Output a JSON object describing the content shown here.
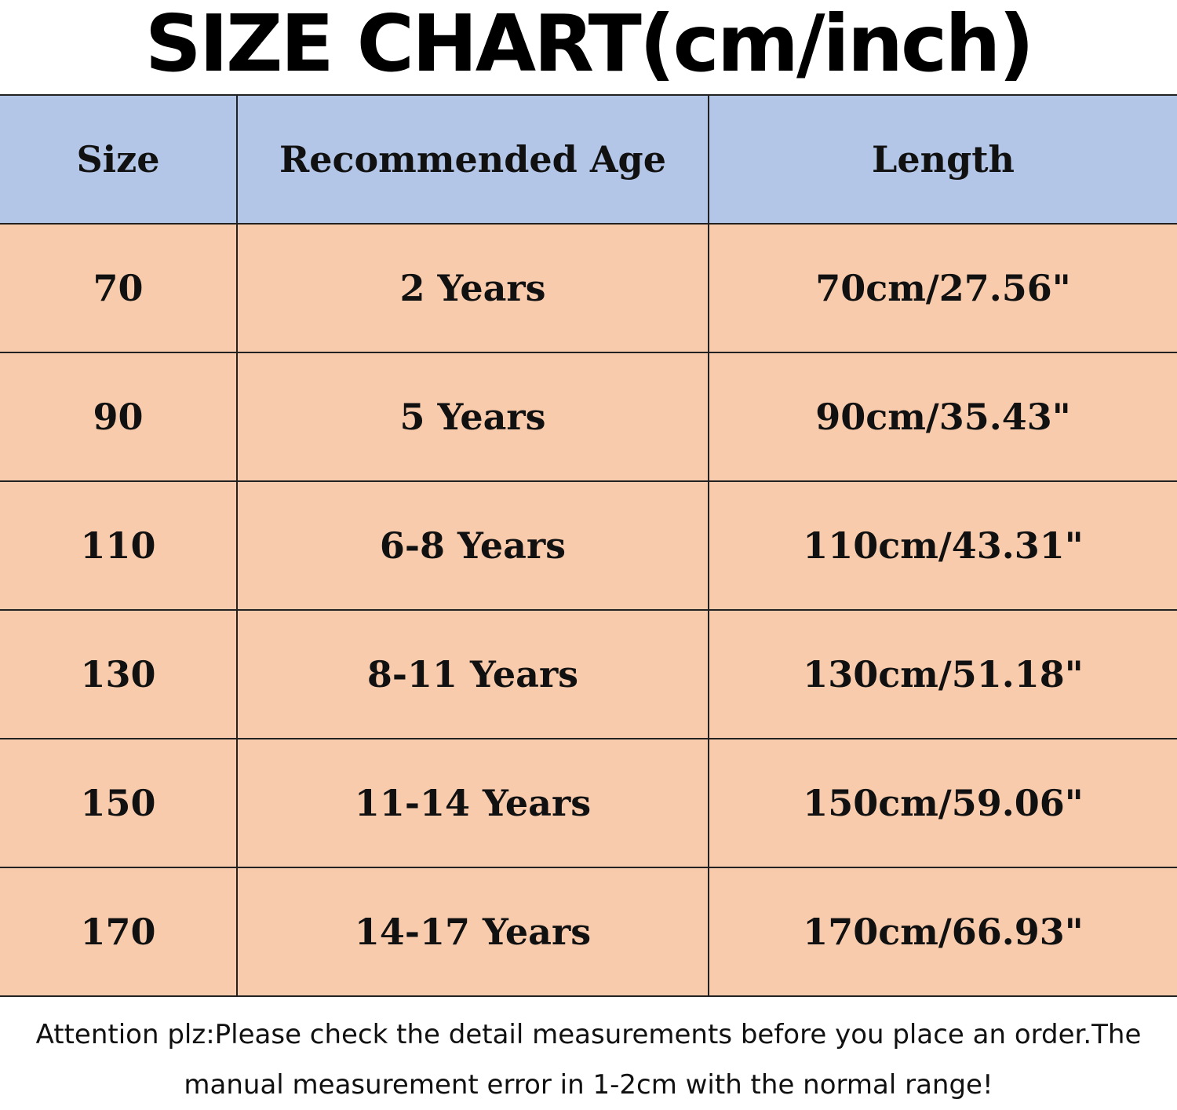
{
  "title": "SIZE CHART(cm/inch)",
  "colors": {
    "header_bg": "#b4c6e7",
    "row_bg": "#f8cbad"
  },
  "table": {
    "headers": [
      "Size",
      "Recommended Age",
      "Length"
    ],
    "rows": [
      [
        "70",
        "2 Years",
        "70cm/27.56\""
      ],
      [
        "90",
        "5 Years",
        "90cm/35.43\""
      ],
      [
        "110",
        "6-8 Years",
        "110cm/43.31\""
      ],
      [
        "130",
        "8-11 Years",
        "130cm/51.18\""
      ],
      [
        "150",
        "11-14 Years",
        "150cm/59.06\""
      ],
      [
        "170",
        "14-17 Years",
        "170cm/66.93\""
      ]
    ]
  },
  "note": {
    "line1": "Attention plz:Please check the detail measurements before you place an order.The",
    "line2": "manual measurement error in 1-2cm with the normal range!"
  }
}
